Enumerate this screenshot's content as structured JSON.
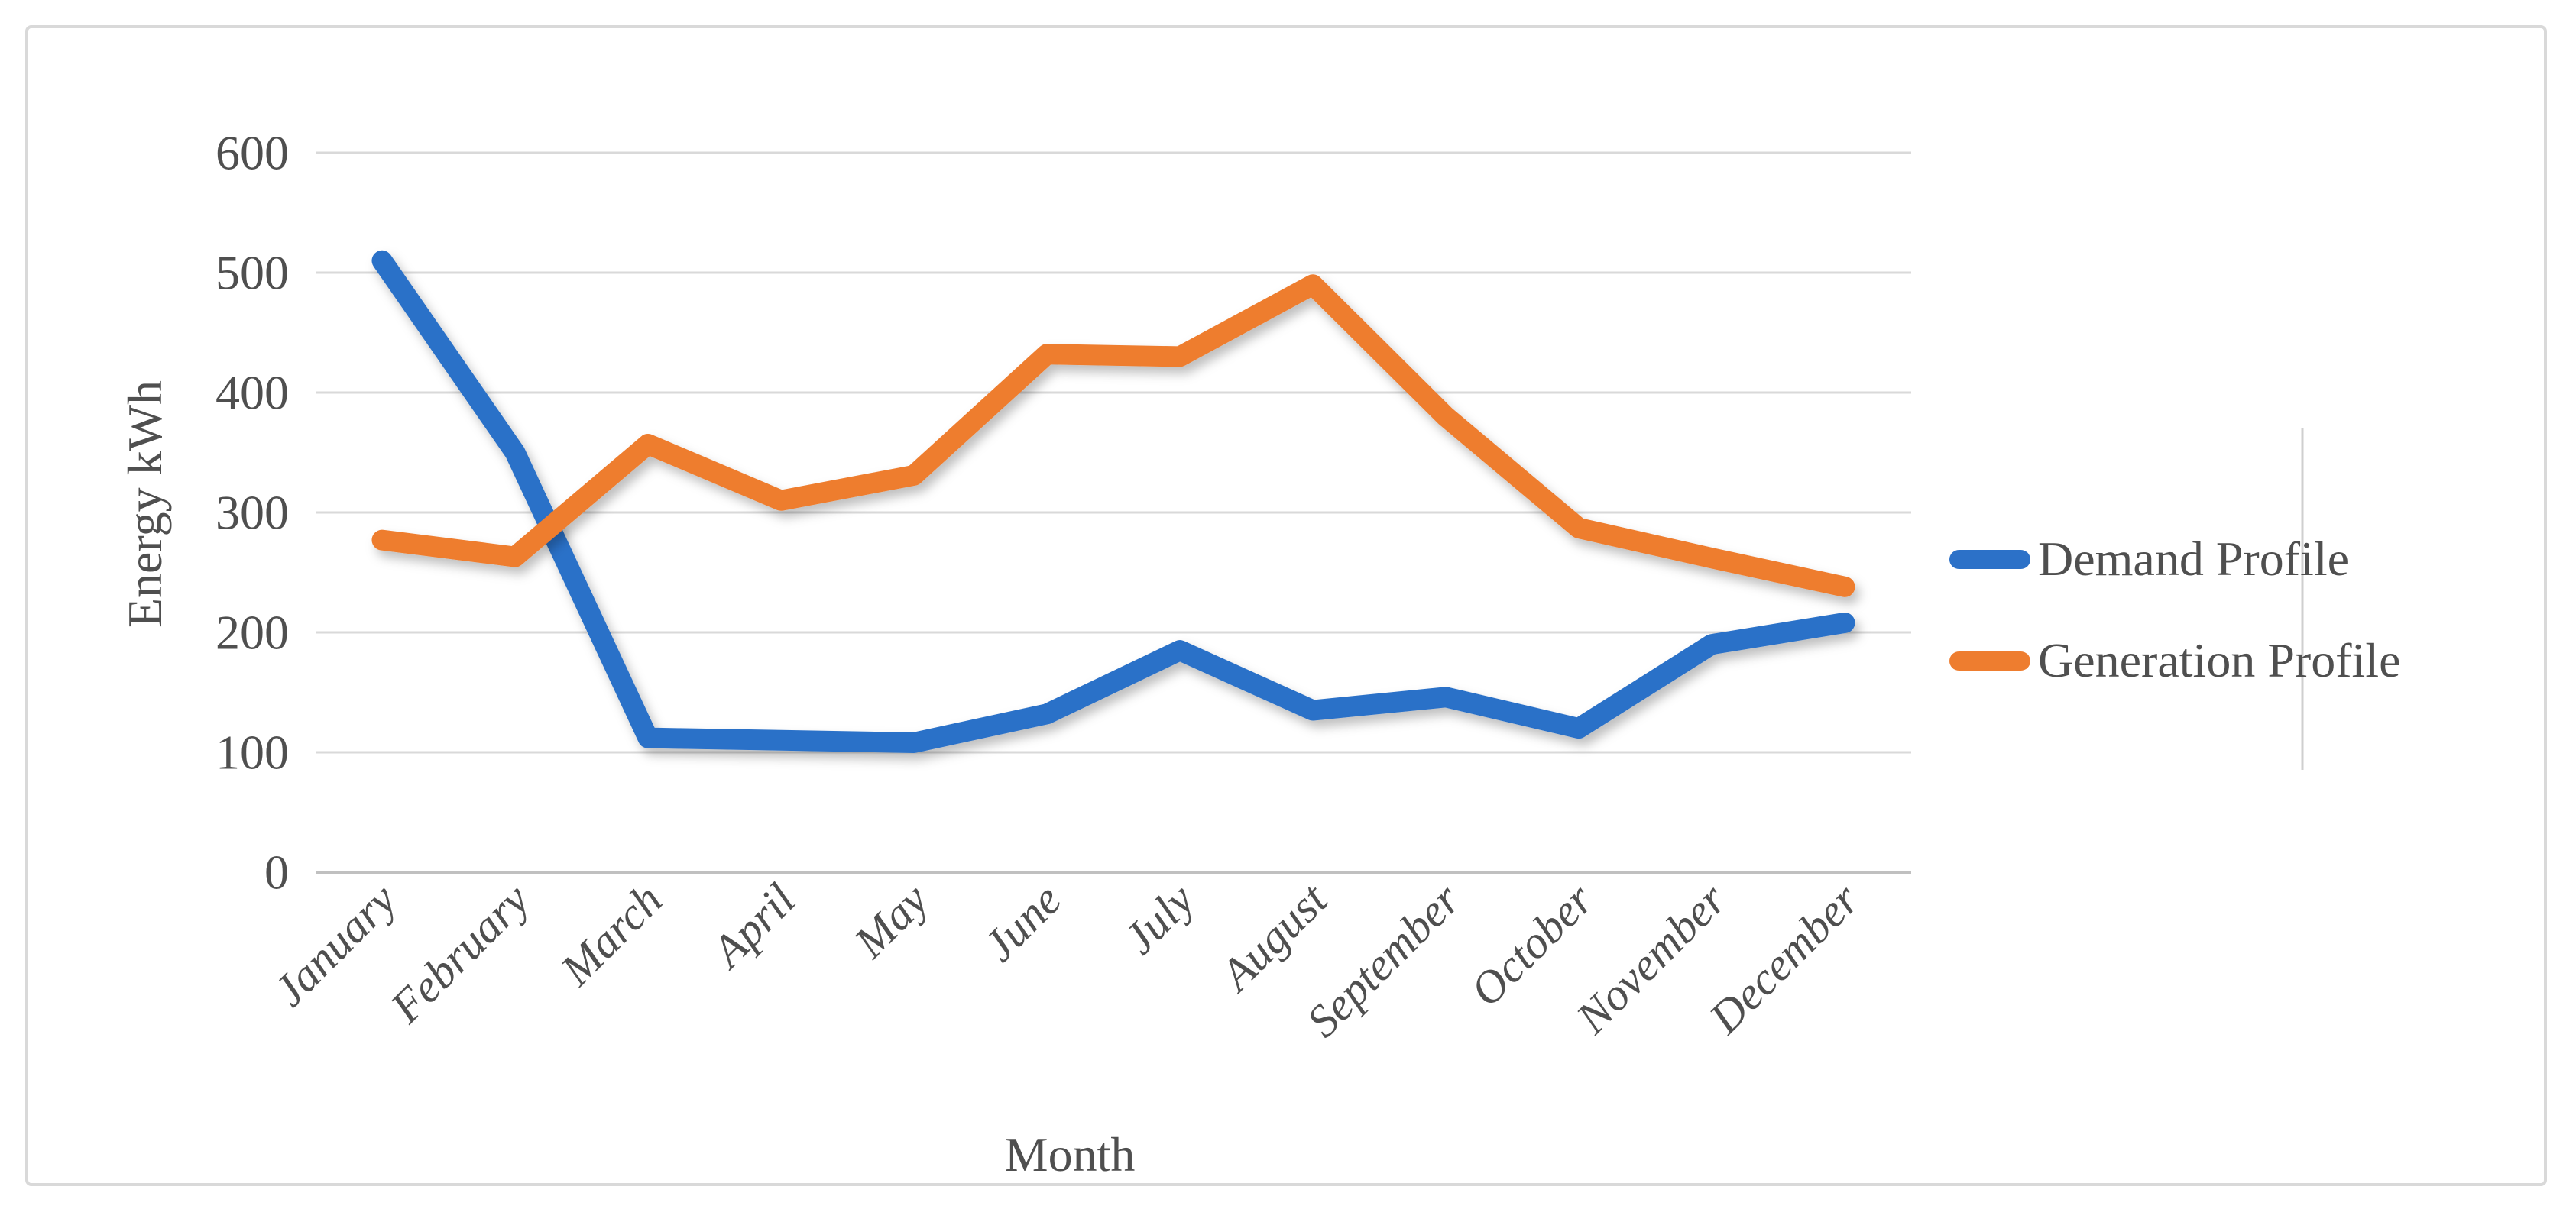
{
  "style": {
    "background": "#FFFFFF",
    "frame_border_color": "#D9D9D9",
    "grid_color": "#D9D9D9",
    "axis_line_color": "#C0C0C0",
    "text_color": "#4F4F4F",
    "edge_artifact_color": "#CFCFCF"
  },
  "legend": {
    "items": [
      {
        "label": "Demand Profile",
        "color": "#2C71C8"
      },
      {
        "label": "Generation Profile",
        "color": "#EE7D2F"
      }
    ],
    "position": "right"
  },
  "chart_data": {
    "type": "line",
    "title": "",
    "categories": [
      "January",
      "February",
      "March",
      "April",
      "May",
      "June",
      "July",
      "August",
      "September",
      "October",
      "November",
      "December"
    ],
    "series": [
      {
        "name": "Demand Profile",
        "color": "#2C71C8",
        "values": [
          510,
          350,
          112,
          110,
          108,
          132,
          185,
          135,
          146,
          120,
          190,
          208
        ]
      },
      {
        "name": "Generation Profile",
        "color": "#EE7D2F",
        "values": [
          277,
          263,
          357,
          310,
          331,
          432,
          430,
          490,
          380,
          287,
          262,
          238
        ]
      }
    ],
    "xlabel": "Month",
    "ylabel": "Energy kWh",
    "ylim": [
      0,
      600
    ],
    "ytick_step": 100,
    "yticks": [
      "0",
      "100",
      "200",
      "300",
      "400",
      "500",
      "600"
    ],
    "grid": "horizontal",
    "legend_position": "right"
  }
}
